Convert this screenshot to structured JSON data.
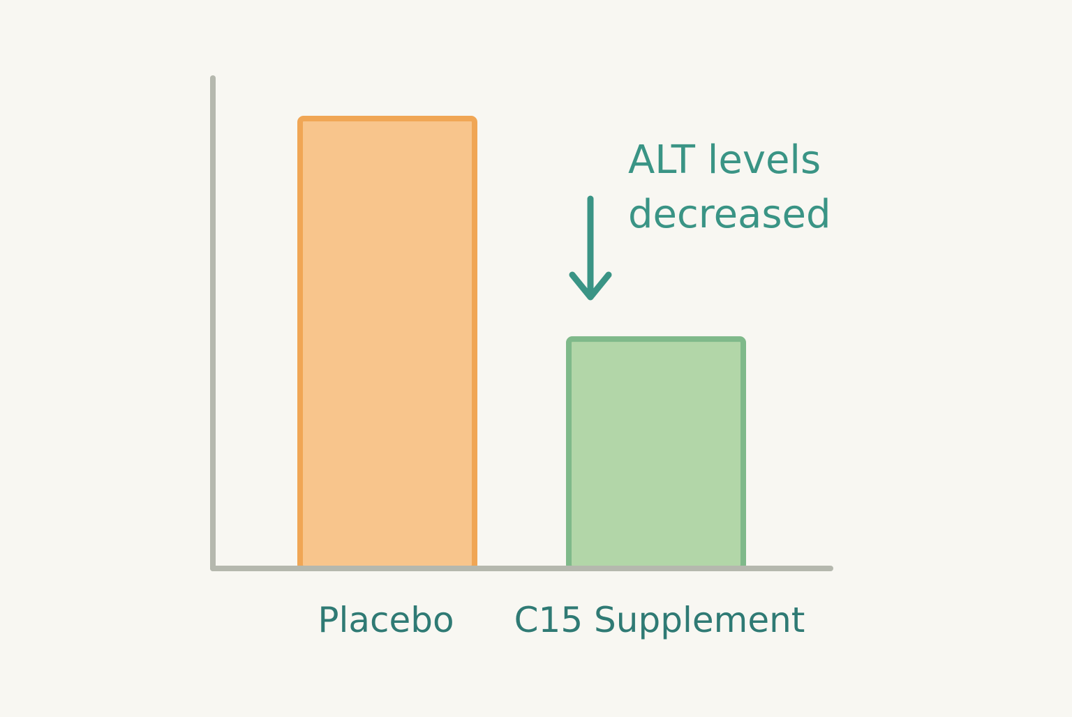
{
  "colors": {
    "background": "#f8f7f2",
    "axis": "#b5b8ae",
    "text": "#2f7a74",
    "annotation": "#3a9485",
    "placebo_fill": "#f8c58c",
    "placebo_stroke": "#f0a655",
    "supplement_fill": "#b2d6a8",
    "supplement_stroke": "#7fb98a"
  },
  "chart_data": {
    "type": "bar",
    "categories": [
      "Placebo",
      "C15 Supplement"
    ],
    "values": [
      100,
      51
    ],
    "ylim": [
      0,
      109
    ],
    "title": "",
    "xlabel": "",
    "ylabel": "",
    "grid": false,
    "annotation": {
      "lines": [
        "ALT levels",
        "decreased"
      ],
      "arrow_target_category": "C15 Supplement",
      "arrow_icon": "down-arrow-icon"
    }
  }
}
